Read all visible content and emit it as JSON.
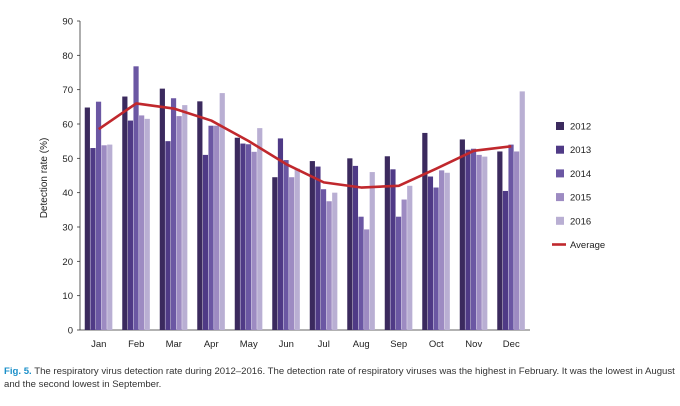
{
  "chart_data": {
    "type": "bar",
    "ylabel": "Detection rate (%)",
    "ylim": [
      0,
      90
    ],
    "yticks": [
      0,
      10,
      20,
      30,
      40,
      50,
      60,
      70,
      80,
      90
    ],
    "categories": [
      "Jan",
      "Feb",
      "Mar",
      "Apr",
      "May",
      "Jun",
      "Jul",
      "Aug",
      "Sep",
      "Oct",
      "Nov",
      "Dec"
    ],
    "series": [
      {
        "name": "2012",
        "color": "#3b2a5e",
        "values": [
          64.8,
          68.0,
          70.3,
          66.6,
          56.0,
          44.5,
          49.2,
          50.0,
          50.6,
          57.4,
          55.5,
          52.0
        ]
      },
      {
        "name": "2013",
        "color": "#4f3a86",
        "values": [
          53.0,
          61.0,
          55.0,
          51.0,
          54.3,
          55.8,
          47.6,
          47.8,
          46.8,
          44.7,
          52.5,
          40.5
        ]
      },
      {
        "name": "2014",
        "color": "#6b57a3",
        "values": [
          66.5,
          76.8,
          67.5,
          59.5,
          54.1,
          49.5,
          41.0,
          33.0,
          33.0,
          41.5,
          52.8,
          54.0
        ]
      },
      {
        "name": "2015",
        "color": "#9d8bc2",
        "values": [
          53.8,
          62.5,
          62.3,
          59.5,
          51.9,
          44.5,
          37.5,
          29.3,
          38.0,
          46.5,
          51.0,
          52.0
        ]
      },
      {
        "name": "2016",
        "color": "#b9afd3",
        "values": [
          54.0,
          61.5,
          65.5,
          69.0,
          58.8,
          47.0,
          40.0,
          46.0,
          42.0,
          45.8,
          50.5,
          69.5
        ]
      }
    ],
    "average": {
      "name": "Average",
      "color": "#c0282d",
      "values": [
        58.5,
        66.0,
        64.5,
        61.0,
        55.0,
        48.3,
        43.0,
        41.5,
        42.0,
        47.0,
        52.2,
        53.5
      ]
    },
    "legend_position": "right"
  },
  "caption": {
    "fig_label": "Fig. 5.",
    "text": " The respiratory virus detection rate during 2012–2016. The detection rate of respiratory viruses was the highest in February. It was the lowest in August and the second lowest in September."
  }
}
